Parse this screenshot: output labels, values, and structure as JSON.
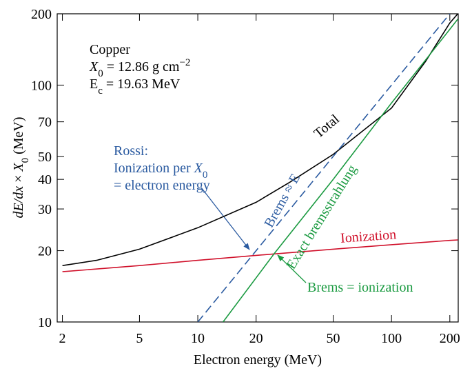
{
  "chart_data": {
    "type": "line",
    "log_x": true,
    "log_y": true,
    "x_label": "Electron energy (MeV)",
    "y_label": [
      "dE/dx",
      " × ",
      "X",
      "0",
      " (MeV)"
    ],
    "xlim": [
      1.88,
      221
    ],
    "ylim": [
      10,
      200
    ],
    "xticks": [
      2,
      5,
      10,
      20,
      50,
      100,
      200
    ],
    "yticks": [
      10,
      20,
      30,
      40,
      50,
      70,
      100,
      200
    ],
    "series": [
      {
        "name": "Total",
        "color": "#000000",
        "style": "solid",
        "x": [
          2,
          3,
          5,
          10,
          20,
          30,
          50,
          100,
          150,
          200,
          220
        ],
        "values": [
          17.3,
          18.2,
          20.3,
          25,
          32,
          39,
          51,
          80,
          126,
          183,
          200
        ]
      },
      {
        "name": "Ionization",
        "color": "#d0102a",
        "style": "solid",
        "x": [
          2,
          5,
          10,
          20,
          50,
          100,
          200,
          220
        ],
        "values": [
          16.3,
          17.3,
          18.2,
          19.1,
          20.3,
          21.2,
          22.1,
          22.2
        ]
      },
      {
        "name": "Brems ≈ E",
        "color": "#2a5aa0",
        "style": "dashed",
        "x": [
          10,
          200
        ],
        "values": [
          10,
          200
        ]
      },
      {
        "name": "Exact bremsstrahlung",
        "color": "#1a9a40",
        "style": "solid",
        "x": [
          13.5,
          25,
          50,
          100,
          200,
          220
        ],
        "values": [
          10,
          19.6,
          40,
          84,
          172,
          190
        ]
      }
    ],
    "annotations": [
      [
        "Copper"
      ],
      [
        "X",
        "0",
        " = 12.86 g cm",
        "−2"
      ],
      [
        "E",
        "c",
        " = 19.63 MeV"
      ],
      [
        "Rossi:"
      ],
      [
        "Ionization per ",
        "X",
        "0"
      ],
      [
        "= electron energy"
      ],
      [
        "Brems = ionization"
      ]
    ]
  }
}
